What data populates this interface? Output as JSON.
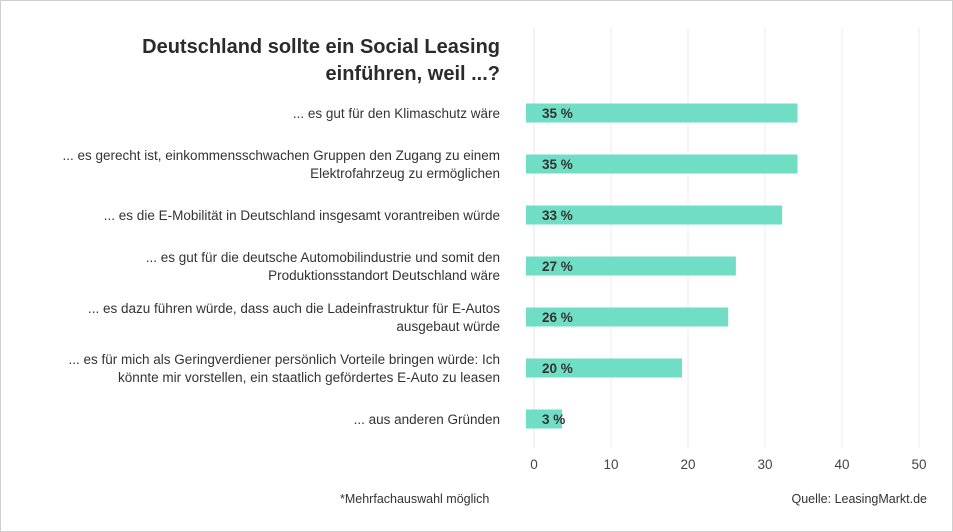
{
  "chart_data": {
    "type": "bar",
    "orientation": "horizontal",
    "title": "Deutschland sollte ein Social Leasing einführen, weil ...?",
    "title_lines": [
      "Deutschland sollte ein Social Leasing",
      "einführen, weil ...?"
    ],
    "categories": [
      [
        "... es gut für den Klimaschutz wäre"
      ],
      [
        "... es gerecht ist, einkommensschwachen Gruppen den Zugang zu einem",
        "Elektrofahrzeug zu ermöglichen"
      ],
      [
        "... es die E-Mobilität in Deutschland insgesamt vorantreiben würde"
      ],
      [
        "... es gut für die deutsche Automobilindustrie und somit den",
        "Produktionsstandort Deutschland wäre"
      ],
      [
        "... es dazu führen würde, dass auch die Ladeinfrastruktur für E-Autos",
        "ausgebaut würde"
      ],
      [
        "... es für mich als Geringverdiener persönlich Vorteile bringen würde: Ich",
        "könnte mir vorstellen, ein staatlich gefördertes E-Auto zu leasen"
      ],
      [
        "... aus anderen Gründen"
      ]
    ],
    "values": [
      35,
      35,
      33,
      27,
      26,
      20,
      3
    ],
    "data_labels": [
      "35 %",
      "35 %",
      "33 %",
      "27 %",
      "26 %",
      "20 %",
      "3 %"
    ],
    "xlabel": "",
    "ylabel": "",
    "xlim": [
      0,
      50
    ],
    "xticks": [
      0,
      10,
      20,
      30,
      40,
      50
    ],
    "grid": true,
    "bar_color": "#70dec4",
    "legend": "none"
  },
  "footnote": "*Mehrfachauswahl möglich",
  "source": "Quelle: LeasingMarkt.de"
}
